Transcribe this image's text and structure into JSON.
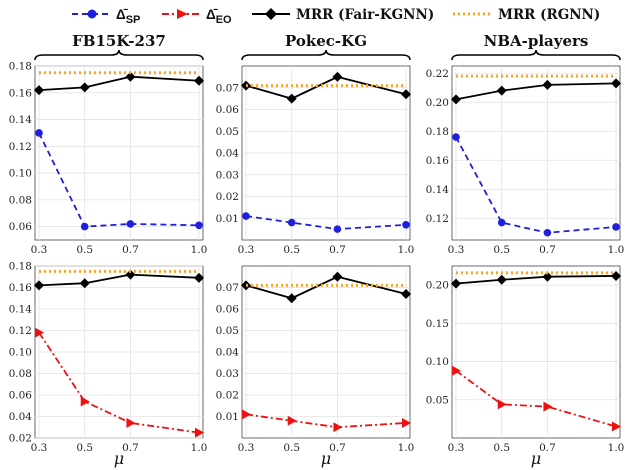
{
  "legend": {
    "sp": "Δ̄SP",
    "eo": "Δ̄EO",
    "mrr_fair": "MRR (Fair-KGNN)",
    "mrr_rgnn": "MRR (RGNN)"
  },
  "groups": [
    "FB15K-237",
    "Pokec-KG",
    "NBA-players"
  ],
  "xlabel": "μ",
  "colors": {
    "sp": "#1f1fdd",
    "eo": "#ee1111",
    "mrr_fair": "#000000",
    "mrr_rgnn": "#f5a623"
  },
  "chart_data": [
    {
      "type": "line",
      "row": 0,
      "col": 0,
      "dataset": "FB15K-237",
      "x": [
        0.3,
        0.5,
        0.7,
        1.0
      ],
      "xticks": [
        "0.3",
        "0.5",
        "0.7",
        "1.0"
      ],
      "ylim": [
        0.05,
        0.18
      ],
      "yticks": [
        "0.06",
        "0.08",
        "0.10",
        "0.12",
        "0.14",
        "0.16",
        "0.18"
      ],
      "grid": true,
      "series": [
        {
          "key": "mrr_fair",
          "values": [
            0.162,
            0.164,
            0.172,
            0.169
          ]
        },
        {
          "key": "mrr_rgnn",
          "values": [
            0.175,
            0.175,
            0.175,
            0.175
          ]
        },
        {
          "key": "sp",
          "values": [
            0.13,
            0.06,
            0.062,
            0.061
          ]
        }
      ]
    },
    {
      "type": "line",
      "row": 0,
      "col": 1,
      "dataset": "Pokec-KG",
      "x": [
        0.3,
        0.5,
        0.7,
        1.0
      ],
      "xticks": [
        "0.3",
        "0.5",
        "0.7",
        "1.0"
      ],
      "ylim": [
        0.0,
        0.08
      ],
      "yticks": [
        "0.01",
        "0.02",
        "0.03",
        "0.04",
        "0.05",
        "0.06",
        "0.07"
      ],
      "grid": true,
      "series": [
        {
          "key": "mrr_fair",
          "values": [
            0.071,
            0.065,
            0.075,
            0.067
          ]
        },
        {
          "key": "mrr_rgnn",
          "values": [
            0.071,
            0.071,
            0.071,
            0.071
          ]
        },
        {
          "key": "sp",
          "values": [
            0.011,
            0.008,
            0.005,
            0.007
          ]
        }
      ]
    },
    {
      "type": "line",
      "row": 0,
      "col": 2,
      "dataset": "NBA-players",
      "x": [
        0.3,
        0.5,
        0.7,
        1.0
      ],
      "xticks": [
        "0.3",
        "0.5",
        "0.7",
        "1.0"
      ],
      "ylim": [
        0.105,
        0.225
      ],
      "yticks": [
        "0.12",
        "0.14",
        "0.16",
        "0.18",
        "0.20",
        "0.22"
      ],
      "grid": true,
      "series": [
        {
          "key": "mrr_fair",
          "values": [
            0.202,
            0.208,
            0.212,
            0.213
          ]
        },
        {
          "key": "mrr_rgnn",
          "values": [
            0.218,
            0.218,
            0.218,
            0.218
          ]
        },
        {
          "key": "sp",
          "values": [
            0.176,
            0.117,
            0.11,
            0.114
          ]
        }
      ]
    },
    {
      "type": "line",
      "row": 1,
      "col": 0,
      "dataset": "FB15K-237",
      "x": [
        0.3,
        0.5,
        0.7,
        1.0
      ],
      "xticks": [
        "0.3",
        "0.5",
        "0.7",
        "1.0"
      ],
      "ylim": [
        0.02,
        0.18
      ],
      "yticks": [
        "0.02",
        "0.04",
        "0.06",
        "0.08",
        "0.10",
        "0.12",
        "0.14",
        "0.16",
        "0.18"
      ],
      "grid": true,
      "series": [
        {
          "key": "mrr_fair",
          "values": [
            0.162,
            0.164,
            0.172,
            0.169
          ]
        },
        {
          "key": "mrr_rgnn",
          "values": [
            0.175,
            0.175,
            0.175,
            0.175
          ]
        },
        {
          "key": "eo",
          "values": [
            0.118,
            0.054,
            0.034,
            0.025
          ]
        }
      ]
    },
    {
      "type": "line",
      "row": 1,
      "col": 1,
      "dataset": "Pokec-KG",
      "x": [
        0.3,
        0.5,
        0.7,
        1.0
      ],
      "xticks": [
        "0.3",
        "0.5",
        "0.7",
        "1.0"
      ],
      "ylim": [
        0.0,
        0.08
      ],
      "yticks": [
        "0.01",
        "0.02",
        "0.03",
        "0.04",
        "0.05",
        "0.06",
        "0.07"
      ],
      "grid": true,
      "series": [
        {
          "key": "mrr_fair",
          "values": [
            0.071,
            0.065,
            0.075,
            0.067
          ]
        },
        {
          "key": "mrr_rgnn",
          "values": [
            0.071,
            0.071,
            0.071,
            0.071
          ]
        },
        {
          "key": "eo",
          "values": [
            0.011,
            0.008,
            0.005,
            0.007
          ]
        }
      ]
    },
    {
      "type": "line",
      "row": 1,
      "col": 2,
      "dataset": "NBA-players",
      "x": [
        0.3,
        0.5,
        0.7,
        1.0
      ],
      "xticks": [
        "0.3",
        "0.5",
        "0.7",
        "1.0"
      ],
      "ylim": [
        0.0,
        0.225
      ],
      "yticks": [
        "0.05",
        "0.10",
        "0.15",
        "0.20"
      ],
      "grid": true,
      "series": [
        {
          "key": "mrr_fair",
          "values": [
            0.202,
            0.207,
            0.211,
            0.212
          ]
        },
        {
          "key": "mrr_rgnn",
          "values": [
            0.216,
            0.216,
            0.216,
            0.216
          ]
        },
        {
          "key": "eo",
          "values": [
            0.088,
            0.044,
            0.041,
            0.015
          ]
        }
      ]
    }
  ]
}
